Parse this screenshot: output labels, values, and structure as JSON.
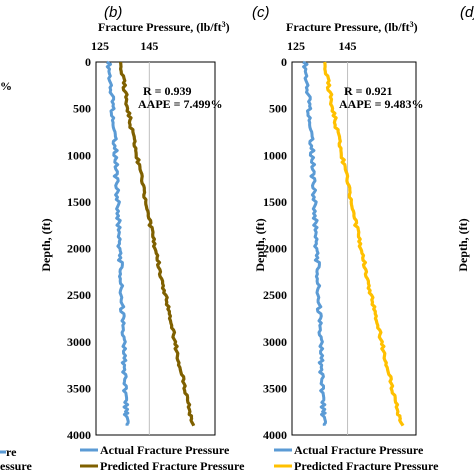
{
  "labels": {
    "b": "(b)",
    "c": "(c)",
    "d": "(d)"
  },
  "left_fragments": {
    "aape_suffix": "%",
    "legend_1": "re",
    "legend_2": "essure"
  },
  "chart_data": [
    {
      "type": "line",
      "panel": "(b)",
      "title": "Fracture Pressure, (lb/ft",
      "title_sup": "3",
      "title_end": ")",
      "ylabel": "Depth, (ft)",
      "xlim": [
        125,
        170
      ],
      "ylim": [
        0,
        4000
      ],
      "x_ticks": [
        "125",
        "145"
      ],
      "y_ticks": [
        "0",
        "500",
        "1000",
        "1500",
        "2000",
        "2500",
        "3000",
        "3500",
        "4000"
      ],
      "stats": {
        "r": "R = 0.939",
        "aape": "AAPE = 7.499%"
      },
      "series": [
        {
          "name": "Actual Fracture Pressure",
          "color": "#5b9bd5",
          "depth": [
            0,
            250,
            500,
            750,
            1000,
            1250,
            1500,
            1750,
            2000,
            2250,
            2500,
            2750,
            3000,
            3250,
            3500,
            3750,
            3900
          ],
          "values": [
            128.5,
            129.3,
            130.2,
            130.7,
            131.4,
            131.6,
            132.2,
            132.5,
            133.0,
            133.5,
            133.6,
            134.2,
            134.6,
            134.8,
            135.3,
            135.6,
            136.0
          ]
        },
        {
          "name": "Predicted Fracture Pressure",
          "color": "#7f6000",
          "depth": [
            0,
            250,
            500,
            750,
            1000,
            1250,
            1500,
            1750,
            2000,
            2250,
            2500,
            2750,
            3000,
            3250,
            3500,
            3750,
            3900
          ],
          "values": [
            133.2,
            134.8,
            136.3,
            138.0,
            139.9,
            141.7,
            143.6,
            145.5,
            147.5,
            149.4,
            151.6,
            153.6,
            155.4,
            157.2,
            159.4,
            161.3,
            163.0
          ]
        }
      ]
    },
    {
      "type": "line",
      "panel": "(c)",
      "title": "Fracture Pressure, (lb/ft",
      "title_sup": "3",
      "title_end": ")",
      "ylabel": "Depth, (ft)",
      "xlim": [
        125,
        170
      ],
      "ylim": [
        0,
        4000
      ],
      "x_ticks": [
        "125",
        "145"
      ],
      "y_ticks": [
        "0",
        "500",
        "1000",
        "1500",
        "2000",
        "2500",
        "3000",
        "3500",
        "4000"
      ],
      "stats": {
        "r": "R = 0.921",
        "aape": "AAPE = 9.483%"
      },
      "series": [
        {
          "name": "Actual Fracture Pressure",
          "color": "#5b9bd5",
          "depth": [
            0,
            250,
            500,
            750,
            1000,
            1250,
            1500,
            1750,
            2000,
            2250,
            2500,
            2750,
            3000,
            3250,
            3500,
            3750,
            3900
          ],
          "values": [
            128.5,
            129.3,
            130.2,
            130.7,
            131.4,
            131.6,
            132.2,
            132.5,
            133.0,
            133.5,
            133.6,
            134.2,
            134.6,
            134.8,
            135.3,
            135.6,
            136.0
          ]
        },
        {
          "name": "Predicted Fracture Pressure",
          "color": "#ffc000",
          "depth": [
            0,
            250,
            500,
            750,
            1000,
            1250,
            1500,
            1750,
            2000,
            2250,
            2500,
            2750,
            3000,
            3250,
            3500,
            3750,
            3900
          ],
          "values": [
            136.0,
            137.6,
            139.3,
            141.0,
            142.8,
            144.6,
            146.5,
            148.4,
            150.3,
            152.2,
            154.2,
            156.2,
            158.2,
            160.2,
            162.3,
            164.4,
            166.5
          ]
        }
      ]
    }
  ]
}
